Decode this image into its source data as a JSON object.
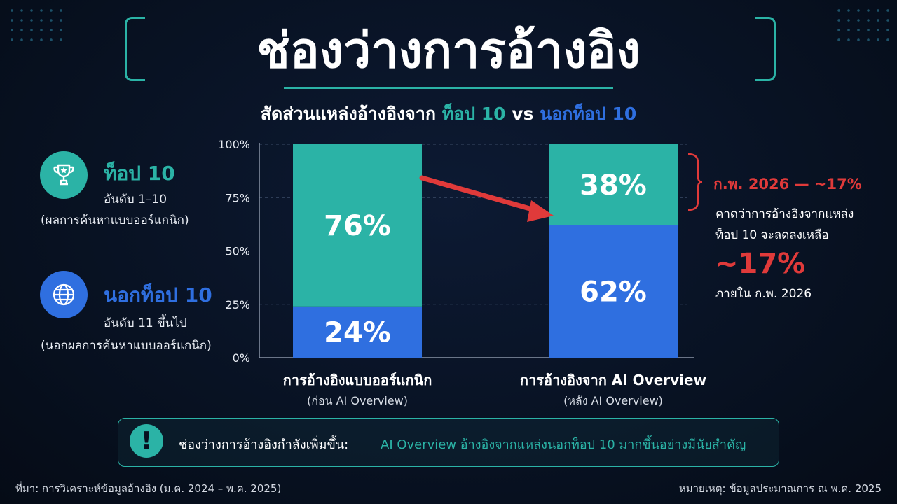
{
  "title": "ช่องว่างการอ้างอิง",
  "subtitle": {
    "prefix": "สัดส่วนแหล่งอ้างอิงจาก",
    "top": "ท็อป 10",
    "vs": "vs",
    "outside": "นอกท็อป 10"
  },
  "legend": {
    "top10": {
      "title": "ท็อป 10",
      "line1": "อันดับ 1–10",
      "line2": "(ผลการค้นหาแบบออร์แกนิก)",
      "icon": "trophy-icon"
    },
    "outside": {
      "title": "นอกท็อป 10",
      "line1": "อันดับ 11 ขึ้นไป",
      "line2": "(นอกผลการค้นหาแบบออร์แกนิก)",
      "icon": "globe-icon"
    }
  },
  "chart_data": {
    "type": "bar",
    "stacked": true,
    "categories": [
      "การอ้างอิงแบบออร์แกนิก",
      "การอ้างอิงจาก AI Overview"
    ],
    "category_sublabels": [
      "(ก่อน AI Overview)",
      "(หลัง AI Overview)"
    ],
    "series": [
      {
        "name": "นอกท็อป 10",
        "values": [
          24,
          62
        ],
        "labels": [
          "24%",
          "62%"
        ],
        "color": "#2f6fe0"
      },
      {
        "name": "ท็อป 10",
        "values": [
          76,
          38
        ],
        "labels": [
          "76%",
          "38%"
        ],
        "color": "#2bb3a6"
      }
    ],
    "ylim": [
      0,
      100
    ],
    "yticks": [
      "0%",
      "25%",
      "50%",
      "75%",
      "100%"
    ],
    "grid": true,
    "annotation_arrow_color": "#e03a3a"
  },
  "projection": {
    "header": "ก.พ. 2026 — ~17%",
    "line1": "คาดว่าการอ้างอิงจากแหล่ง",
    "line2": "ท็อป 10 จะลดลงเหลือ",
    "big": "~17%",
    "line3": "ภายใน ก.พ. 2026",
    "color": "#e03a3a"
  },
  "callout": {
    "lead": "ช่องว่างการอ้างอิงกำลังเพิ่มขึ้น:",
    "message": "AI Overview อ้างอิงจากแหล่งนอกท็อป 10 มากขึ้นอย่างมีนัยสำคัญ",
    "icon": "exclamation-icon"
  },
  "footer": {
    "source": "ที่มา: การวิเคราะห์ข้อมูลอ้างอิง (ม.ค. 2024 – พ.ค. 2025)",
    "note": "หมายเหตุ: ข้อมูลประมาณการ ณ พ.ค. 2025"
  },
  "colors": {
    "accent": "#2bb3a6",
    "blue": "#2f6fe0",
    "red": "#e03a3a",
    "background": "#07101f"
  }
}
